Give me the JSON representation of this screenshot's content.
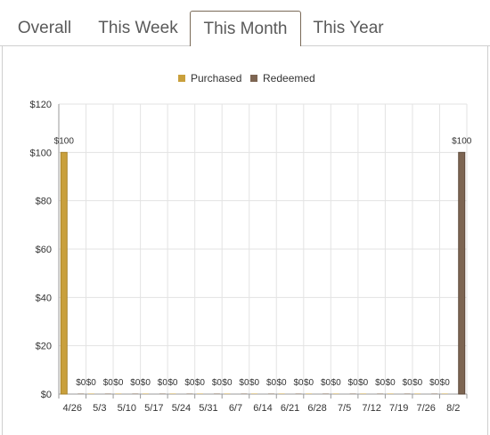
{
  "tabs": [
    {
      "label": "Overall",
      "active": false
    },
    {
      "label": "This Week",
      "active": false
    },
    {
      "label": "This Month",
      "active": true
    },
    {
      "label": "This Year",
      "active": false
    }
  ],
  "colors": {
    "purchased": "#c9a03c",
    "redeemed": "#7d6552",
    "grid": "#e3e3e3",
    "axis": "#9a9a9a",
    "active_tab_border": "#7a6a58"
  },
  "chart_data": {
    "type": "bar",
    "categories": [
      "4/26",
      "5/3",
      "5/10",
      "5/17",
      "5/24",
      "5/31",
      "6/7",
      "6/14",
      "6/21",
      "6/28",
      "7/5",
      "7/12",
      "7/19",
      "7/26",
      "8/2"
    ],
    "series": [
      {
        "name": "Purchased",
        "values": [
          100,
          0,
          0,
          0,
          0,
          0,
          0,
          0,
          0,
          0,
          0,
          0,
          0,
          0,
          0
        ]
      },
      {
        "name": "Redeemed",
        "values": [
          0,
          0,
          0,
          0,
          0,
          0,
          0,
          0,
          0,
          0,
          0,
          0,
          0,
          0,
          100
        ]
      }
    ],
    "data_labels": [
      [
        "$100",
        "$0"
      ],
      [
        "$0",
        "$0"
      ],
      [
        "$0",
        "$0"
      ],
      [
        "$0",
        "$0"
      ],
      [
        "$0",
        "$0"
      ],
      [
        "$0",
        "$0"
      ],
      [
        "$0",
        "$0"
      ],
      [
        "$0",
        "$0"
      ],
      [
        "$0",
        "$0"
      ],
      [
        "$0",
        "$0"
      ],
      [
        "$0",
        "$0"
      ],
      [
        "$0",
        "$0"
      ],
      [
        "$0",
        "$0"
      ],
      [
        "$0",
        "$0"
      ],
      [
        "$0",
        "$100"
      ]
    ],
    "yticks": [
      "$0",
      "$20",
      "$40",
      "$60",
      "$80",
      "$100",
      "$120"
    ],
    "ylim": [
      0,
      120
    ],
    "grid": true,
    "legend_position": "top-center"
  }
}
